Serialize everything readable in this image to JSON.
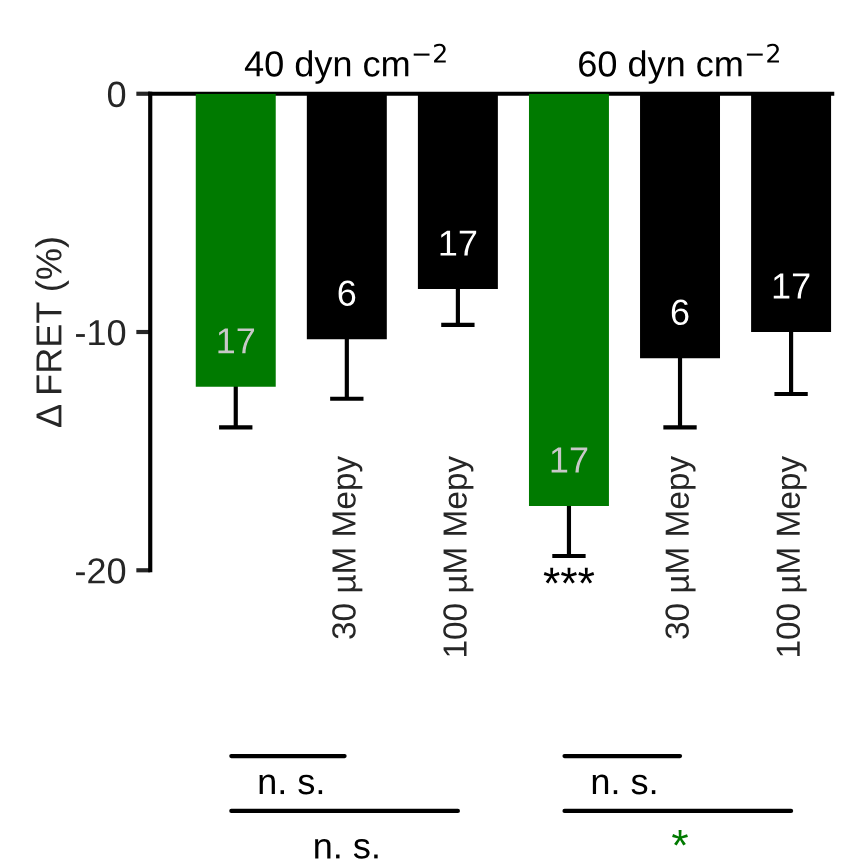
{
  "chart_data": {
    "type": "bar",
    "ylabel": "Δ FRET (%)",
    "categories": [
      null,
      "30 µM Mepy",
      "100 µM Mepy",
      null,
      "30 µM Mepy",
      "100 µM Mepy"
    ],
    "values": [
      -12.3,
      -10.3,
      -8.2,
      -17.3,
      -11.1,
      -10.0
    ],
    "errors": [
      1.7,
      2.5,
      1.5,
      2.1,
      2.9,
      2.6
    ],
    "colors": [
      "#007a00",
      "#000000",
      "#000000",
      "#007a00",
      "#000000",
      "#000000"
    ],
    "ylim": [
      -20,
      0
    ],
    "yticks": [
      -20,
      -10,
      0
    ],
    "annotations": [
      "40 dyn cm$^{−2}$",
      "60 dyn cm$^{−2}$",
      "***",
      "n. s.",
      "n. s.",
      "n. s.",
      "*",
      "17",
      "6",
      "17",
      "17",
      "6",
      "17"
    ]
  }
}
